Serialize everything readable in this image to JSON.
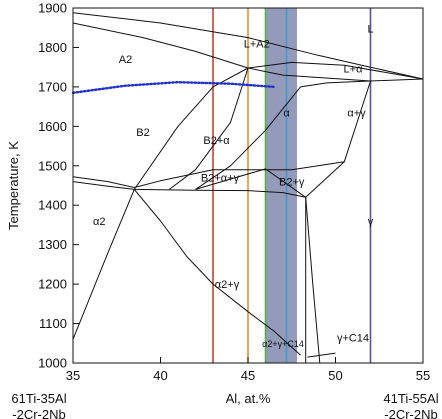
{
  "chart_data": {
    "type": "line",
    "title": "",
    "xlabel": "Al, at.%",
    "ylabel": "Temperature, K",
    "xlim": [
      35,
      55
    ],
    "ylim": [
      1000,
      1900
    ],
    "x_ticks": [
      35,
      40,
      45,
      50,
      55
    ],
    "x_tick_labels": [
      "35",
      "40",
      "45",
      "50",
      "55"
    ],
    "y_ticks": [
      1000,
      1100,
      1200,
      1300,
      1400,
      1500,
      1600,
      1700,
      1800,
      1900
    ],
    "y_tick_labels": [
      "1000",
      "1100",
      "1200",
      "1300",
      "1400",
      "1500",
      "1600",
      "1700",
      "1800",
      "1900"
    ],
    "grid": false,
    "end_labels": {
      "left": [
        "61Ti-35Al",
        "-2Cr-2Nb"
      ],
      "right": [
        "41Ti-55Al",
        "-2Cr-2Nb"
      ]
    },
    "phase_boundaries": [
      {
        "points": [
          [
            35,
            1888
          ],
          [
            40,
            1862
          ],
          [
            45,
            1825
          ],
          [
            49,
            1780
          ],
          [
            52,
            1750
          ],
          [
            55,
            1720
          ]
        ]
      },
      {
        "points": [
          [
            35,
            1862
          ],
          [
            39,
            1825
          ],
          [
            42,
            1790
          ],
          [
            45,
            1748
          ],
          [
            47,
            1730
          ],
          [
            52,
            1715
          ],
          [
            55,
            1720
          ]
        ]
      },
      {
        "points": [
          [
            45,
            1748
          ],
          [
            47.5,
            1762
          ],
          [
            50.5,
            1755
          ],
          [
            55,
            1720
          ]
        ]
      },
      {
        "points": [
          [
            35,
            1060
          ],
          [
            37,
            1280
          ],
          [
            38.5,
            1440
          ],
          [
            41,
            1600
          ],
          [
            43,
            1700
          ],
          [
            45,
            1748
          ]
        ]
      },
      {
        "points": [
          [
            35,
            1472
          ],
          [
            37,
            1460
          ],
          [
            38.5,
            1445
          ],
          [
            40,
            1462
          ],
          [
            43,
            1490
          ],
          [
            47.5,
            1490
          ],
          [
            50.5,
            1510
          ]
        ]
      },
      {
        "points": [
          [
            35,
            1460
          ],
          [
            37,
            1448
          ],
          [
            38.5,
            1440
          ],
          [
            42,
            1438
          ],
          [
            45,
            1437
          ],
          [
            47,
            1432
          ],
          [
            48.3,
            1420
          ]
        ]
      },
      {
        "points": [
          [
            40.5,
            1440
          ],
          [
            42,
            1490
          ],
          [
            43,
            1550
          ],
          [
            44,
            1610
          ],
          [
            45,
            1748
          ]
        ]
      },
      {
        "points": [
          [
            42,
            1440
          ],
          [
            44,
            1500
          ],
          [
            46,
            1590
          ],
          [
            48,
            1700
          ],
          [
            49.5,
            1710
          ],
          [
            52,
            1715
          ]
        ]
      },
      {
        "points": [
          [
            42,
            1440
          ],
          [
            43.5,
            1460
          ],
          [
            46,
            1492
          ],
          [
            48.3,
            1420
          ],
          [
            50.5,
            1510
          ],
          [
            52,
            1715
          ]
        ]
      },
      {
        "points": [
          [
            38.5,
            1440
          ],
          [
            40,
            1360
          ],
          [
            41.5,
            1270
          ],
          [
            43,
            1200
          ],
          [
            45,
            1130
          ],
          [
            46.5,
            1080
          ],
          [
            48,
            1020
          ]
        ]
      },
      {
        "points": [
          [
            48.3,
            1420
          ],
          [
            48.3,
            1250
          ],
          [
            48.3,
            1000
          ]
        ]
      },
      {
        "points": [
          [
            48.3,
            1420
          ],
          [
            48.7,
            1200
          ],
          [
            49.1,
            1000
          ]
        ]
      },
      {
        "points": [
          [
            48.4,
            1015
          ],
          [
            49.2,
            1020
          ],
          [
            50,
            1025
          ]
        ]
      }
    ],
    "dotted_boundary": {
      "color": "#1f2fcc",
      "points": [
        [
          35,
          1685
        ],
        [
          38,
          1703
        ],
        [
          41,
          1712
        ],
        [
          44,
          1708
        ],
        [
          46.5,
          1700
        ]
      ]
    },
    "composition_lines": [
      {
        "x": 43.0,
        "color": "#d23a3a"
      },
      {
        "x": 45.0,
        "color": "#e8902a"
      },
      {
        "x": 46.0,
        "color": "#4fb04a"
      },
      {
        "x": 47.2,
        "color": "#3a9cd6"
      },
      {
        "x": 52.0,
        "color": "#5a4fa0"
      }
    ],
    "shaded_band": {
      "x_range": [
        46.0,
        47.8
      ],
      "color": "#8890b2"
    },
    "region_labels": [
      {
        "text": "A2",
        "x": 38.0,
        "y": 1760
      },
      {
        "text": "L+A2",
        "x": 45.5,
        "y": 1800
      },
      {
        "text": "L",
        "x": 52.0,
        "y": 1838
      },
      {
        "text": "L+α",
        "x": 51.0,
        "y": 1737
      },
      {
        "text": "α",
        "x": 47.2,
        "y": 1625
      },
      {
        "text": "α+γ",
        "x": 51.2,
        "y": 1625
      },
      {
        "text": "B2",
        "x": 39.0,
        "y": 1575
      },
      {
        "text": "B2+α",
        "x": 43.2,
        "y": 1555
      },
      {
        "text": "B2+α+γ",
        "x": 43.4,
        "y": 1460
      },
      {
        "text": "B2+γ",
        "x": 47.5,
        "y": 1450
      },
      {
        "text": "α2",
        "x": 36.5,
        "y": 1350
      },
      {
        "text": "α2+γ",
        "x": 43.8,
        "y": 1190
      },
      {
        "text": "γ",
        "x": 52.0,
        "y": 1350
      },
      {
        "text": "α2+γ+C14",
        "x": 47.0,
        "y": 1040
      },
      {
        "text": "γ+C14",
        "x": 51.0,
        "y": 1055
      }
    ]
  }
}
